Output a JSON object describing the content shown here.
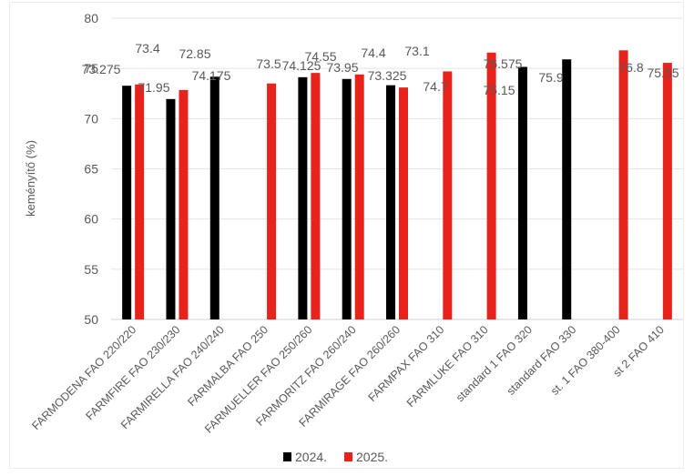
{
  "chart_data": {
    "type": "bar",
    "title": "",
    "xlabel": "",
    "ylabel": "keményítő (%)",
    "ylim": [
      50,
      80
    ],
    "yticks": [
      50,
      55,
      60,
      65,
      70,
      75,
      80
    ],
    "grid": true,
    "legend_position": "bottom",
    "categories": [
      "FARMODENA FAO 220/220",
      "FARMFIRE FAO 230/230",
      "FARMIRELLA FAO 240/240",
      "FARMALBA FAO 250",
      "FARMUELLER FAO 250/260",
      "FARMORITZ FAO 260/240",
      "FARMIRAGE FAO 260/260",
      "FARMPAX FAO 310",
      "FARMLUKE FAO 310",
      "standard 1 FAO 320",
      "standard  FAO 330",
      "st. 1 FAO 380-400",
      "st 2 FAO 410"
    ],
    "series": [
      {
        "name": "2024.",
        "color": "#000000",
        "values": [
          73.275,
          71.95,
          74.175,
          null,
          74.125,
          73.95,
          73.325,
          null,
          null,
          75.15,
          75.9,
          null,
          null
        ],
        "labels": [
          "73.275",
          "71.95",
          "74.175",
          null,
          "74.125",
          "73.95",
          "73.325",
          null,
          null,
          "75.15",
          "75.9",
          null,
          null
        ]
      },
      {
        "name": "2025.",
        "color": "#e8231b",
        "values": [
          73.4,
          72.85,
          null,
          73.5,
          74.55,
          74.4,
          73.1,
          74.7,
          76.575,
          null,
          null,
          76.8,
          75.55
        ],
        "labels": [
          "73.4",
          "72.85",
          null,
          "73.5",
          "74.55",
          "74.4",
          "73.1",
          "74.7",
          "76.575",
          null,
          null,
          "76.8",
          "75.55"
        ]
      }
    ]
  }
}
